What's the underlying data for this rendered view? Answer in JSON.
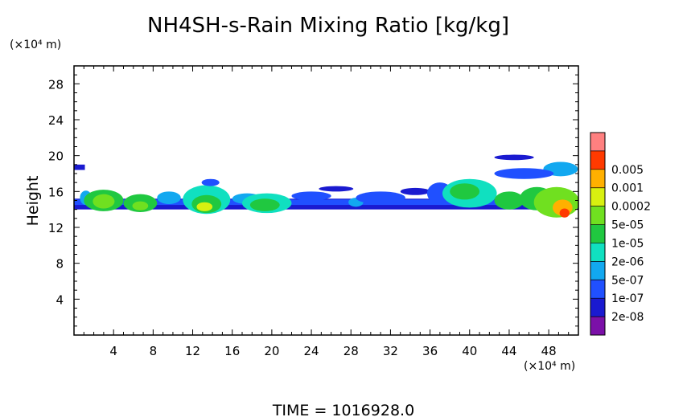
{
  "chart_data": {
    "type": "heatmap",
    "title": "NH4SH-s-Rain Mixing Ratio [kg/kg]",
    "ylabel": "Height",
    "y_unit_label": "(×10⁴ m)",
    "x_unit_label": "(×10⁴ m)",
    "footer": "TIME = 1016928.0",
    "xlim": [
      0,
      51
    ],
    "ylim": [
      0,
      30
    ],
    "x_ticks": [
      4,
      8,
      12,
      16,
      20,
      24,
      28,
      32,
      36,
      40,
      44,
      48
    ],
    "y_ticks": [
      4,
      8,
      12,
      16,
      20,
      24,
      28
    ],
    "colorbar": {
      "labels": [
        "0.005",
        "0.001",
        "0.0002",
        "5e-05",
        "1e-05",
        "2e-06",
        "5e-07",
        "1e-07",
        "2e-08"
      ],
      "colors": [
        "#7b10a8",
        "#1a1ad0",
        "#2050ff",
        "#12a8f0",
        "#10e0c0",
        "#20c840",
        "#70e020",
        "#d8f010",
        "#ffb000",
        "#ff3a00",
        "#ff8080"
      ]
    },
    "layers": [
      {
        "x0": 0,
        "x1": 51,
        "yc": 14.6,
        "h": 1.2,
        "level": 1
      },
      {
        "x0": 0,
        "x1": 51,
        "yc": 14.8,
        "h": 0.6,
        "level": 2
      },
      {
        "x0": 0,
        "x1": 1.1,
        "yc": 18.7,
        "h": 0.6,
        "level": 1
      }
    ],
    "blobs": [
      {
        "x": 1.2,
        "y": 15.3,
        "w": 1.2,
        "h": 1.6,
        "level": 3
      },
      {
        "x": 3.0,
        "y": 15.0,
        "w": 4.0,
        "h": 2.4,
        "level": 5
      },
      {
        "x": 3.0,
        "y": 14.9,
        "w": 2.2,
        "h": 1.6,
        "level": 6
      },
      {
        "x": 6.7,
        "y": 14.7,
        "w": 3.4,
        "h": 2.0,
        "level": 5
      },
      {
        "x": 6.7,
        "y": 14.4,
        "w": 1.6,
        "h": 1.0,
        "level": 6
      },
      {
        "x": 9.6,
        "y": 15.3,
        "w": 2.4,
        "h": 1.4,
        "level": 3
      },
      {
        "x": 13.4,
        "y": 15.1,
        "w": 4.8,
        "h": 3.2,
        "level": 4
      },
      {
        "x": 13.4,
        "y": 14.6,
        "w": 3.0,
        "h": 2.0,
        "level": 5
      },
      {
        "x": 13.2,
        "y": 14.3,
        "w": 1.6,
        "h": 1.0,
        "level": 7
      },
      {
        "x": 13.8,
        "y": 17.0,
        "w": 1.8,
        "h": 0.8,
        "level": 2
      },
      {
        "x": 17.5,
        "y": 15.2,
        "w": 3.0,
        "h": 1.2,
        "level": 3
      },
      {
        "x": 19.5,
        "y": 14.7,
        "w": 5.0,
        "h": 2.2,
        "level": 4
      },
      {
        "x": 19.3,
        "y": 14.5,
        "w": 3.0,
        "h": 1.4,
        "level": 5
      },
      {
        "x": 24.0,
        "y": 15.5,
        "w": 4.0,
        "h": 1.0,
        "level": 2
      },
      {
        "x": 26.5,
        "y": 16.3,
        "w": 3.5,
        "h": 0.6,
        "level": 1
      },
      {
        "x": 28.5,
        "y": 14.8,
        "w": 1.5,
        "h": 1.0,
        "level": 3
      },
      {
        "x": 31.0,
        "y": 15.3,
        "w": 5.0,
        "h": 1.4,
        "level": 2
      },
      {
        "x": 34.5,
        "y": 16.0,
        "w": 3.0,
        "h": 0.8,
        "level": 1
      },
      {
        "x": 37.0,
        "y": 15.8,
        "w": 2.6,
        "h": 2.4,
        "level": 2
      },
      {
        "x": 40.0,
        "y": 15.8,
        "w": 5.5,
        "h": 3.2,
        "level": 4
      },
      {
        "x": 39.5,
        "y": 16.0,
        "w": 3.0,
        "h": 1.8,
        "level": 5
      },
      {
        "x": 44.0,
        "y": 15.0,
        "w": 3.0,
        "h": 2.0,
        "level": 5
      },
      {
        "x": 46.8,
        "y": 15.2,
        "w": 3.5,
        "h": 2.6,
        "level": 5
      },
      {
        "x": 48.8,
        "y": 14.8,
        "w": 4.6,
        "h": 3.4,
        "level": 6
      },
      {
        "x": 49.4,
        "y": 14.2,
        "w": 2.0,
        "h": 1.8,
        "level": 8
      },
      {
        "x": 49.6,
        "y": 13.6,
        "w": 1.0,
        "h": 1.0,
        "level": 9
      },
      {
        "x": 49.2,
        "y": 18.5,
        "w": 3.5,
        "h": 1.6,
        "level": 3
      },
      {
        "x": 45.5,
        "y": 18.0,
        "w": 6.0,
        "h": 1.2,
        "level": 2
      },
      {
        "x": 44.5,
        "y": 19.8,
        "w": 4.0,
        "h": 0.6,
        "level": 1
      }
    ]
  }
}
